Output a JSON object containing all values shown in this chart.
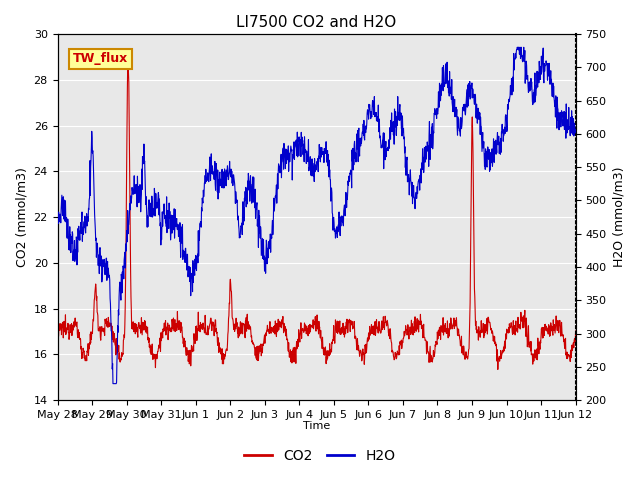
{
  "title": "LI7500 CO2 and H2O",
  "xlabel": "Time",
  "ylabel_left": "CO2 (mmol/m3)",
  "ylabel_right": "H2O (mmol/m3)",
  "ylim_left": [
    14,
    30
  ],
  "ylim_right": [
    200,
    750
  ],
  "yticks_left": [
    14,
    16,
    18,
    20,
    22,
    24,
    26,
    28,
    30
  ],
  "yticks_right": [
    200,
    250,
    300,
    350,
    400,
    450,
    500,
    550,
    600,
    650,
    700,
    750
  ],
  "bg_color": "#e8e8e8",
  "fig_color": "#ffffff",
  "co2_color": "#cc0000",
  "h2o_color": "#0000cc",
  "annotation_text": "TW_flux",
  "annotation_bg": "#ffff99",
  "annotation_border": "#cc8800",
  "legend_co2": "CO2",
  "legend_h2o": "H2O",
  "xtick_labels": [
    "May 28",
    "May 29",
    "May 30",
    "May 31",
    "Jun 1",
    "Jun 2",
    "Jun 3",
    "Jun 4",
    "Jun 5",
    "Jun 6",
    "Jun 7",
    "Jun 8",
    "Jun 9",
    "Jun 10",
    "Jun 11",
    "Jun 12"
  ],
  "n_points": 1440,
  "title_fontsize": 11,
  "label_fontsize": 9,
  "tick_fontsize": 8
}
